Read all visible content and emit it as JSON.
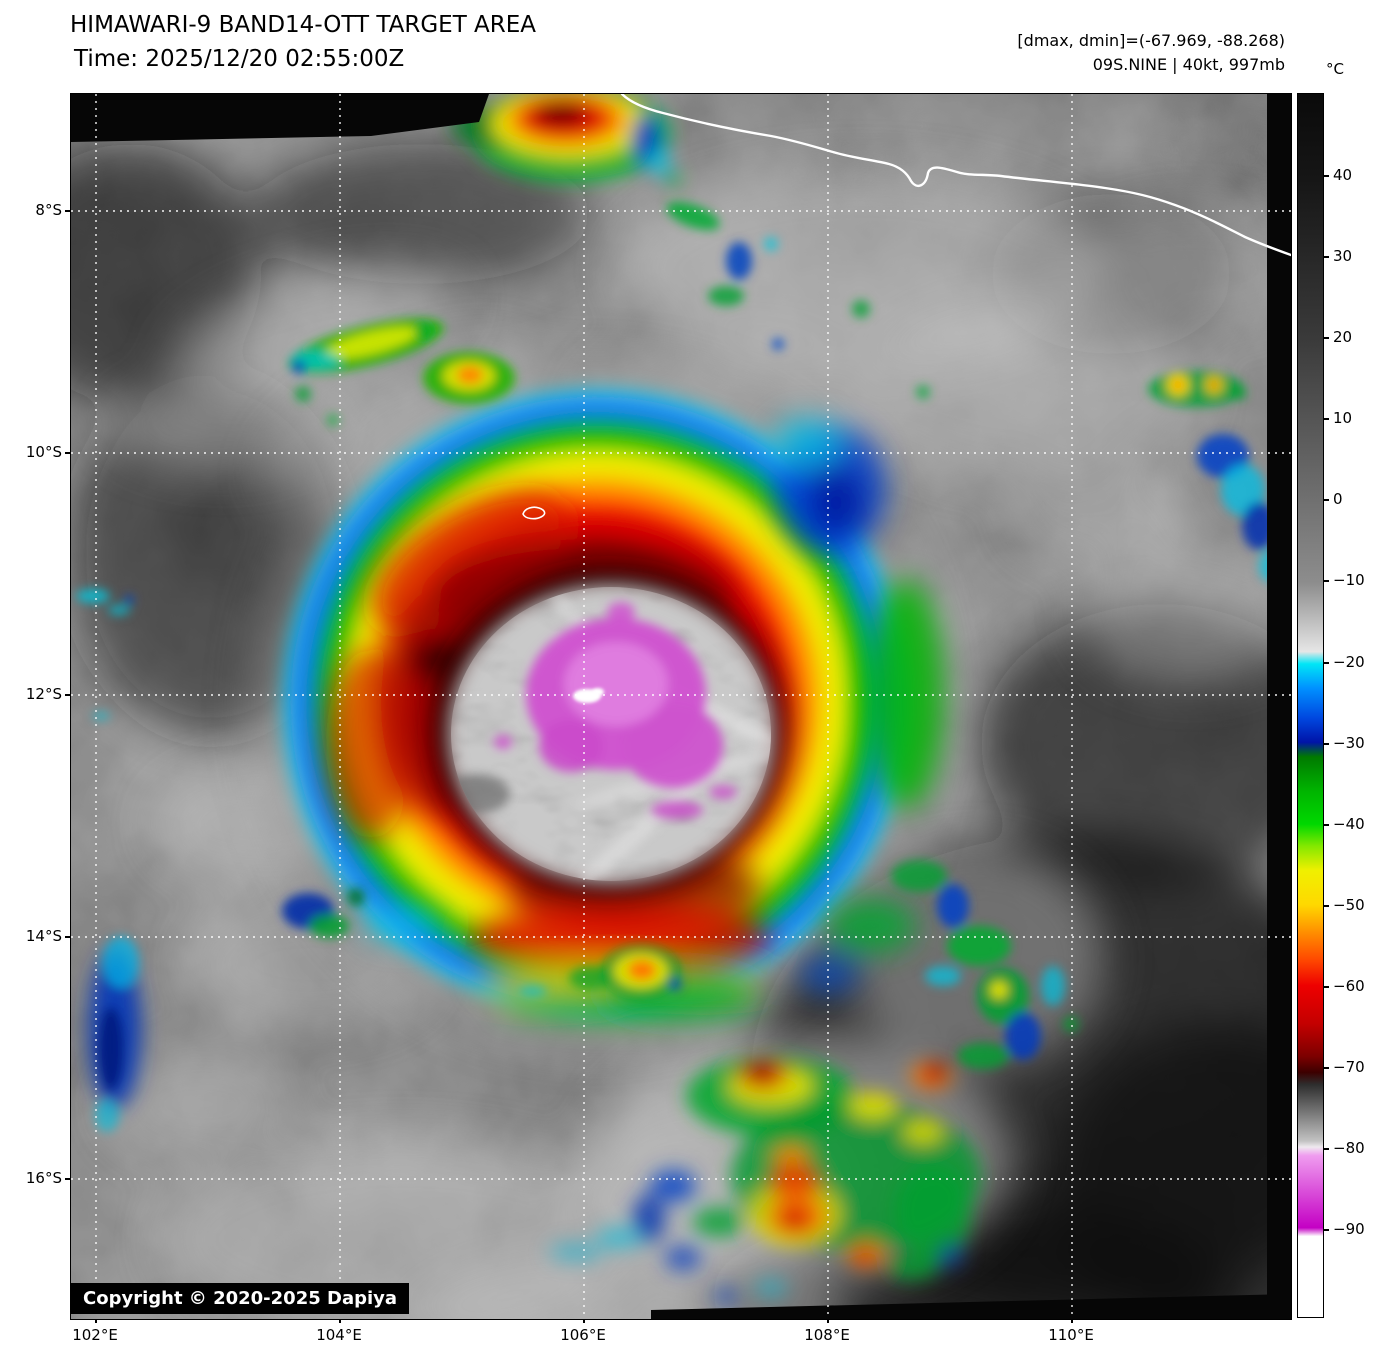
{
  "header": {
    "title": "HIMAWARI-9 BAND14-OTT TARGET AREA",
    "time": "Time: 2025/12/20 02:55:00Z",
    "dmax_dmin": "[dmax, dmin]=(-67.969, -88.268)",
    "storm_id": "09S.NINE | 40kt, 997mb"
  },
  "colorbar": {
    "unit": "°C",
    "ticks": [
      "40",
      "30",
      "20",
      "10",
      "0",
      "−10",
      "−20",
      "−30",
      "−40",
      "−50",
      "−60",
      "−70",
      "−80",
      "−90"
    ],
    "stops": [
      {
        "at": 0,
        "color": "#0a0a0a"
      },
      {
        "at": 7,
        "color": "#161616"
      },
      {
        "at": 20,
        "color": "#3a3a3a"
      },
      {
        "at": 33,
        "color": "#6f6f6f"
      },
      {
        "at": 40,
        "color": "#8d8d8d"
      },
      {
        "at": 45.6,
        "color": "#e6e6e6"
      },
      {
        "at": 46.6,
        "color": "#00e6f6"
      },
      {
        "at": 48.6,
        "color": "#0090ff"
      },
      {
        "at": 51,
        "color": "#0048e0"
      },
      {
        "at": 53,
        "color": "#0014a8"
      },
      {
        "at": 54.2,
        "color": "#007a00"
      },
      {
        "at": 57,
        "color": "#00b400"
      },
      {
        "at": 59.7,
        "color": "#00d800"
      },
      {
        "at": 61.5,
        "color": "#84e800"
      },
      {
        "at": 63.5,
        "color": "#f0f000"
      },
      {
        "at": 66.3,
        "color": "#ffd800"
      },
      {
        "at": 68.5,
        "color": "#ff9000"
      },
      {
        "at": 70.8,
        "color": "#ff4800"
      },
      {
        "at": 72.9,
        "color": "#ee0000"
      },
      {
        "at": 76,
        "color": "#c40000"
      },
      {
        "at": 78.7,
        "color": "#7c0000"
      },
      {
        "at": 80,
        "color": "#3c0000"
      },
      {
        "at": 81,
        "color": "#2e2e2e"
      },
      {
        "at": 85.6,
        "color": "#c2c2c2"
      },
      {
        "at": 86.1,
        "color": "#efeaef"
      },
      {
        "at": 86.8,
        "color": "#ef9cef"
      },
      {
        "at": 92.7,
        "color": "#c400c4"
      },
      {
        "at": 93.4,
        "color": "#ffffff"
      },
      {
        "at": 100,
        "color": "#ffffff"
      }
    ]
  },
  "axes": {
    "lat": [
      "8°S",
      "10°S",
      "12°S",
      "14°S",
      "16°S"
    ],
    "lon": [
      "102°E",
      "104°E",
      "106°E",
      "108°E",
      "110°E"
    ]
  },
  "footer": {
    "copyright": "Copyright © 2020-2025 Dapiya"
  }
}
